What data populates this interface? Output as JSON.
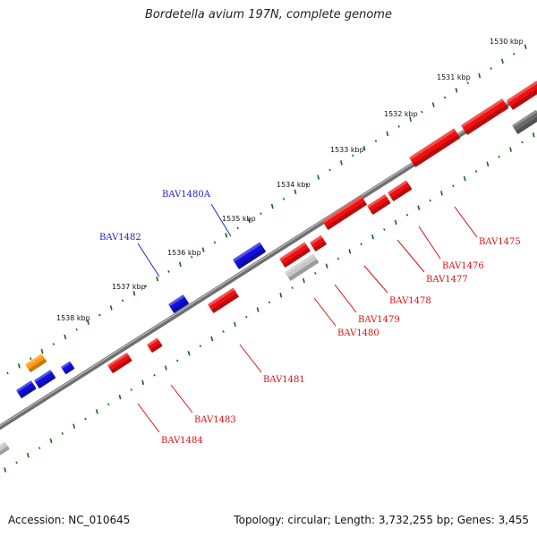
{
  "title": "Bordetella avium 197N, complete genome",
  "footer": {
    "accession": "Accession: NC_010645",
    "summary": "Topology: circular; Length: 3,732,255 bp; Genes: 3,455"
  },
  "colors": {
    "backbone": "#7a7a7a",
    "forward": "#1010dd",
    "reverse": "#ee1010",
    "rna": "#ff9a10",
    "pseudo": "#c8c8c8",
    "other": "#6a6a6a",
    "tick": "#116611"
  },
  "ticks": [
    {
      "kbp": 1530,
      "label": "1530 kbp"
    },
    {
      "kbp": 1531,
      "label": "1531 kbp"
    },
    {
      "kbp": 1532,
      "label": "1532 kbp"
    },
    {
      "kbp": 1533,
      "label": "1533 kbp"
    },
    {
      "kbp": 1534,
      "label": "1534 kbp"
    },
    {
      "kbp": 1535,
      "label": "1535 kbp"
    },
    {
      "kbp": 1536,
      "label": "1536 kbp"
    },
    {
      "kbp": 1537,
      "label": "1537 kbp"
    },
    {
      "kbp": 1538,
      "label": "1538 kbp"
    }
  ],
  "labels": [
    {
      "name": "BAV1480A",
      "strand": "forward"
    },
    {
      "name": "BAV1482",
      "strand": "forward"
    },
    {
      "name": "BAV1475",
      "strand": "reverse"
    },
    {
      "name": "BAV1476",
      "strand": "reverse"
    },
    {
      "name": "BAV1477",
      "strand": "reverse"
    },
    {
      "name": "BAV1478",
      "strand": "reverse"
    },
    {
      "name": "BAV1479",
      "strand": "reverse"
    },
    {
      "name": "BAV1480",
      "strand": "reverse"
    },
    {
      "name": "BAV1481",
      "strand": "reverse"
    },
    {
      "name": "BAV1483",
      "strand": "reverse"
    },
    {
      "name": "BAV1484",
      "strand": "reverse"
    }
  ]
}
